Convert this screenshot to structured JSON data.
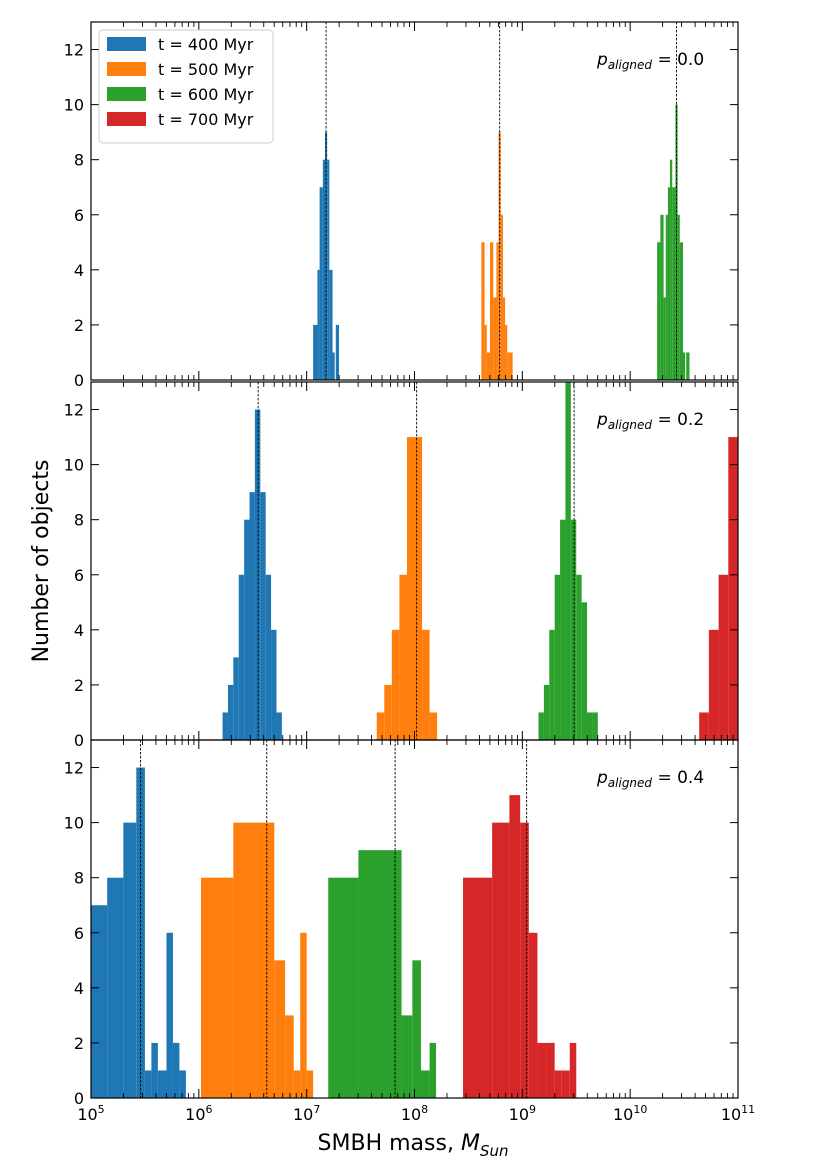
{
  "figure": {
    "xlabel": "SMBH mass, ",
    "xlabel_sym": "M",
    "xlabel_sub": "Sun",
    "ylabel": "Number of objects",
    "xscale": "log",
    "x_ticks": [
      {
        "value": 100000,
        "base": "10",
        "exp": "5"
      },
      {
        "value": 1000000,
        "base": "10",
        "exp": "6"
      },
      {
        "value": 10000000,
        "base": "10",
        "exp": "7"
      },
      {
        "value": 100000000,
        "base": "10",
        "exp": "8"
      },
      {
        "value": 1000000000,
        "base": "10",
        "exp": "9"
      },
      {
        "value": 10000000000,
        "base": "10",
        "exp": "10"
      },
      {
        "value": 100000000000,
        "base": "10",
        "exp": "11"
      }
    ],
    "y_ticks": [
      "0",
      "2",
      "4",
      "6",
      "8",
      "10",
      "12"
    ],
    "legend": {
      "placement": "top-left of top panel",
      "entries": [
        {
          "label": "t = 400 Myr",
          "color": "#1f77b4"
        },
        {
          "label": "t = 500 Myr",
          "color": "#ff7f0e"
        },
        {
          "label": "t = 600 Myr",
          "color": "#2ca02c"
        },
        {
          "label": "t = 700 Myr",
          "color": "#d62728"
        }
      ]
    }
  },
  "chart_data": [
    {
      "type": "histogram",
      "annotation": {
        "sym": "p",
        "sub": "aligned",
        "rel": " = 0.0"
      },
      "xlim_log10": [
        5,
        11
      ],
      "ylim": [
        0,
        13
      ],
      "series": [
        {
          "name": "t = 400 Myr",
          "color": "#1f77b4",
          "median_log10": 7.18,
          "bins_log10": [
            [
              7.06,
              7.1,
              2
            ],
            [
              7.1,
              7.12,
              4
            ],
            [
              7.12,
              7.15,
              7
            ],
            [
              7.15,
              7.17,
              8
            ],
            [
              7.17,
              7.19,
              9
            ],
            [
              7.19,
              7.21,
              8
            ],
            [
              7.21,
              7.24,
              4
            ],
            [
              7.24,
              7.26,
              1
            ],
            [
              7.27,
              7.3,
              2
            ]
          ]
        },
        {
          "name": "t = 500 Myr",
          "color": "#ff7f0e",
          "median_log10": 8.79,
          "bins_log10": [
            [
              8.62,
              8.65,
              5
            ],
            [
              8.65,
              8.67,
              2
            ],
            [
              8.67,
              8.7,
              1
            ],
            [
              8.7,
              8.73,
              5
            ],
            [
              8.73,
              8.76,
              3
            ],
            [
              8.76,
              8.78,
              5
            ],
            [
              8.78,
              8.8,
              9
            ],
            [
              8.8,
              8.82,
              6
            ],
            [
              8.82,
              8.84,
              3
            ],
            [
              8.84,
              8.86,
              2
            ],
            [
              8.86,
              8.88,
              1
            ],
            [
              8.88,
              8.91,
              1
            ]
          ]
        },
        {
          "name": "t = 600 Myr",
          "color": "#2ca02c",
          "median_log10": 10.43,
          "bins_log10": [
            [
              10.25,
              10.28,
              5
            ],
            [
              10.28,
              10.31,
              6
            ],
            [
              10.31,
              10.33,
              3
            ],
            [
              10.33,
              10.35,
              6
            ],
            [
              10.35,
              10.37,
              7
            ],
            [
              10.37,
              10.39,
              8
            ],
            [
              10.39,
              10.42,
              7
            ],
            [
              10.42,
              10.44,
              10
            ],
            [
              10.44,
              10.46,
              6
            ],
            [
              10.46,
              10.49,
              5
            ],
            [
              10.49,
              10.51,
              1
            ],
            [
              10.52,
              10.55,
              1
            ]
          ]
        }
      ]
    },
    {
      "type": "histogram",
      "annotation": {
        "sym": "p",
        "sub": "aligned",
        "rel": " = 0.2"
      },
      "xlim_log10": [
        5,
        11
      ],
      "ylim": [
        0,
        13
      ],
      "series": [
        {
          "name": "t = 400 Myr",
          "color": "#1f77b4",
          "median_log10": 6.55,
          "bins_log10": [
            [
              6.22,
              6.27,
              1
            ],
            [
              6.27,
              6.32,
              2
            ],
            [
              6.32,
              6.37,
              3
            ],
            [
              6.37,
              6.42,
              6
            ],
            [
              6.42,
              6.47,
              8
            ],
            [
              6.47,
              6.52,
              9
            ],
            [
              6.52,
              6.57,
              12
            ],
            [
              6.57,
              6.62,
              9
            ],
            [
              6.62,
              6.67,
              6
            ],
            [
              6.67,
              6.72,
              4
            ],
            [
              6.72,
              6.77,
              1
            ]
          ]
        },
        {
          "name": "t = 500 Myr",
          "color": "#ff7f0e",
          "median_log10": 8.02,
          "bins_log10": [
            [
              7.65,
              7.72,
              1
            ],
            [
              7.72,
              7.79,
              2
            ],
            [
              7.79,
              7.86,
              4
            ],
            [
              7.86,
              7.93,
              6
            ],
            [
              7.93,
              8.0,
              11
            ],
            [
              8.0,
              8.07,
              11
            ],
            [
              8.07,
              8.14,
              4
            ],
            [
              8.14,
              8.21,
              1
            ]
          ]
        },
        {
          "name": "t = 600 Myr",
          "color": "#2ca02c",
          "median_log10": 9.48,
          "bins_log10": [
            [
              9.15,
              9.2,
              1
            ],
            [
              9.2,
              9.25,
              2
            ],
            [
              9.25,
              9.3,
              4
            ],
            [
              9.3,
              9.35,
              6
            ],
            [
              9.35,
              9.4,
              8
            ],
            [
              9.4,
              9.45,
              13
            ],
            [
              9.45,
              9.5,
              8
            ],
            [
              9.5,
              9.55,
              6
            ],
            [
              9.55,
              9.6,
              5
            ],
            [
              9.6,
              9.65,
              1
            ],
            [
              9.65,
              9.7,
              1
            ]
          ]
        },
        {
          "name": "t = 700 Myr",
          "color": "#d62728",
          "median_log10": null,
          "bins_log10": [
            [
              10.64,
              10.73,
              1
            ],
            [
              10.73,
              10.82,
              4
            ],
            [
              10.82,
              10.91,
              6
            ],
            [
              10.91,
              11.0,
              11
            ]
          ]
        }
      ]
    },
    {
      "type": "histogram",
      "annotation": {
        "sym": "p",
        "sub": "aligned",
        "rel": " = 0.4"
      },
      "xlim_log10": [
        5,
        11
      ],
      "ylim": [
        0,
        13
      ],
      "series": [
        {
          "name": "t = 400 Myr",
          "color": "#1f77b4",
          "median_log10": 5.46,
          "bins_log10": [
            [
              5.0,
              5.15,
              7
            ],
            [
              5.15,
              5.3,
              8
            ],
            [
              5.3,
              5.42,
              10
            ],
            [
              5.42,
              5.5,
              12
            ],
            [
              5.5,
              5.56,
              1
            ],
            [
              5.56,
              5.62,
              2
            ],
            [
              5.62,
              5.7,
              1
            ],
            [
              5.7,
              5.76,
              6
            ],
            [
              5.76,
              5.82,
              2
            ],
            [
              5.82,
              5.88,
              1
            ]
          ]
        },
        {
          "name": "t = 500 Myr",
          "color": "#ff7f0e",
          "median_log10": 6.63,
          "bins_log10": [
            [
              6.02,
              6.32,
              8
            ],
            [
              6.32,
              6.7,
              10
            ],
            [
              6.7,
              6.8,
              5
            ],
            [
              6.8,
              6.88,
              3
            ],
            [
              6.88,
              6.94,
              1
            ],
            [
              6.94,
              7.0,
              6
            ],
            [
              7.0,
              7.06,
              1
            ]
          ]
        },
        {
          "name": "t = 600 Myr",
          "color": "#2ca02c",
          "median_log10": 7.82,
          "bins_log10": [
            [
              7.2,
              7.48,
              8
            ],
            [
              7.48,
              7.88,
              9
            ],
            [
              7.88,
              7.98,
              3
            ],
            [
              7.98,
              8.06,
              5
            ],
            [
              8.06,
              8.14,
              1
            ],
            [
              8.14,
              8.2,
              2
            ]
          ]
        },
        {
          "name": "t = 700 Myr",
          "color": "#d62728",
          "median_log10": 9.04,
          "bins_log10": [
            [
              8.45,
              8.72,
              8
            ],
            [
              8.72,
              8.88,
              10
            ],
            [
              8.88,
              8.98,
              11
            ],
            [
              8.98,
              9.06,
              10
            ],
            [
              9.06,
              9.14,
              6
            ],
            [
              9.14,
              9.22,
              2
            ],
            [
              9.22,
              9.3,
              2
            ],
            [
              9.3,
              9.36,
              1
            ],
            [
              9.36,
              9.44,
              1
            ],
            [
              9.44,
              9.5,
              2
            ]
          ]
        }
      ]
    }
  ]
}
